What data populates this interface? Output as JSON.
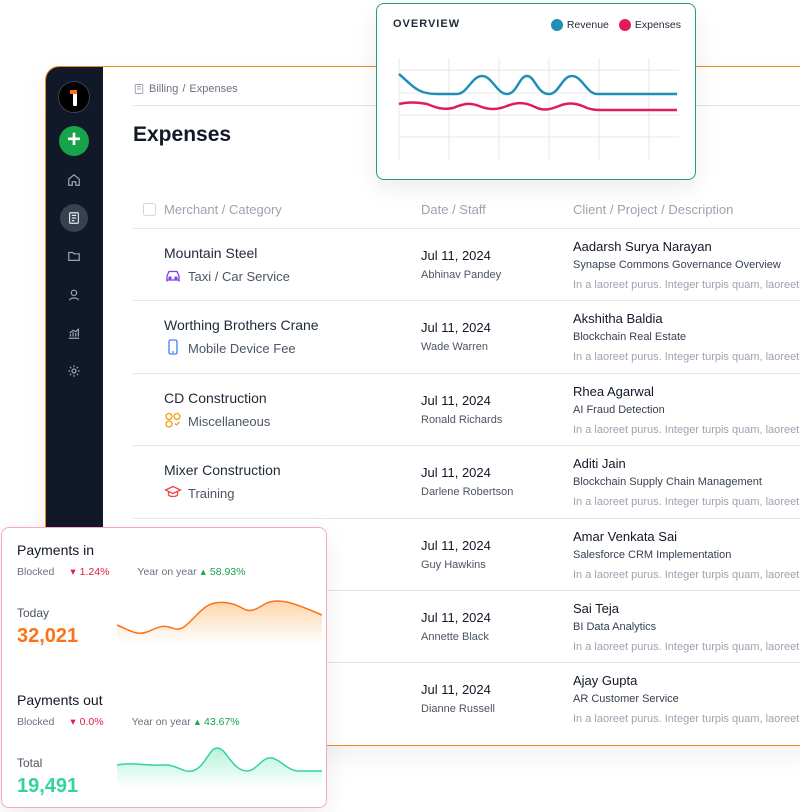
{
  "breadcrumb": {
    "section": "Billing",
    "separator": "/",
    "page": "Expenses"
  },
  "page_title": "Expenses",
  "table": {
    "headers": [
      "Merchant / Category",
      "Date / Staff",
      "Client / Project / Description"
    ],
    "rows": [
      {
        "merchant": "Mountain Steel",
        "category": "Taxi / Car Service",
        "category_icon": "car-icon",
        "date": "Jul 11, 2024",
        "staff": "Abhinav Pandey",
        "client": "Aadarsh Surya Narayan",
        "project": "Synapse Commons Governance Overview",
        "description": "In a laoreet purus. Integer turpis quam, laoreet"
      },
      {
        "merchant": "Worthing Brothers Crane",
        "category": "Mobile Device Fee",
        "category_icon": "mobile-icon",
        "date": "Jul 11, 2024",
        "staff": "Wade Warren",
        "client": "Akshitha Baldia",
        "project": "Blockchain Real Estate",
        "description": "In a laoreet purus. Integer turpis quam, laoreet"
      },
      {
        "merchant": "CD Construction",
        "category": "Miscellaneous",
        "category_icon": "misc-icon",
        "date": "Jul 11, 2024",
        "staff": "Ronald Richards",
        "client": "Rhea Agarwal",
        "project": "AI Fraud Detection",
        "description": "In a laoreet purus. Integer turpis quam, laoreet"
      },
      {
        "merchant": "Mixer Construction",
        "category": "Training",
        "category_icon": "graduation-cap-icon",
        "date": "Jul 11, 2024",
        "staff": "Darlene Robertson",
        "client": "Aditi Jain",
        "project": "Blockchain Supply Chain Management",
        "description": "In a laoreet purus. Integer turpis quam, laoreet"
      },
      {
        "merchant": "",
        "category": "",
        "category_icon": "",
        "date": "Jul 11, 2024",
        "staff": "Guy Hawkins",
        "client": "Amar Venkata Sai",
        "project": "Salesforce CRM Implementation",
        "description": "In a laoreet purus. Integer turpis quam, laoreet"
      },
      {
        "merchant": "",
        "category": "",
        "category_icon": "",
        "date": "Jul 11, 2024",
        "staff": "Annette Black",
        "client": "Sai Teja",
        "project": "BI Data Analytics",
        "description": "In a laoreet purus. Integer turpis quam, laoreet"
      },
      {
        "merchant": "",
        "category": "",
        "category_icon": "",
        "date": "Jul 11, 2024",
        "staff": "Dianne Russell",
        "client": "Ajay Gupta",
        "project": "AR Customer Service",
        "description": "In a laoreet purus. Integer turpis quam, laoreet"
      }
    ]
  },
  "sidebar": {
    "icons": [
      "logo-icon",
      "add-icon",
      "home-icon",
      "receipt-icon",
      "folder-icon",
      "user-icon",
      "analytics-icon",
      "gear-icon"
    ],
    "active": "receipt-icon"
  },
  "overview": {
    "title": "OVERVIEW",
    "legend": [
      {
        "name": "Revenue",
        "color": "#1f8fb8"
      },
      {
        "name": "Expenses",
        "color": "#e11d58"
      }
    ]
  },
  "payments_in": {
    "title": "Payments in",
    "blocked_label": "Blocked",
    "blocked_change": "1.24%",
    "yoy_label": "Year on year",
    "yoy_change": "58.93%",
    "value_label": "Today",
    "value": "32,021",
    "color": "#f97316"
  },
  "payments_out": {
    "title": "Payments out",
    "blocked_label": "Blocked",
    "blocked_change": "0.0%",
    "yoy_label": "Year on year",
    "yoy_change": "43.67%",
    "value_label": "Total",
    "value": "19,491",
    "color": "#34d399"
  },
  "colors": {
    "accent_orange": "#f08a24",
    "accent_green": "#22a06b",
    "accent_pink": "#f9a8c4",
    "sidebar_bg": "#111827"
  }
}
